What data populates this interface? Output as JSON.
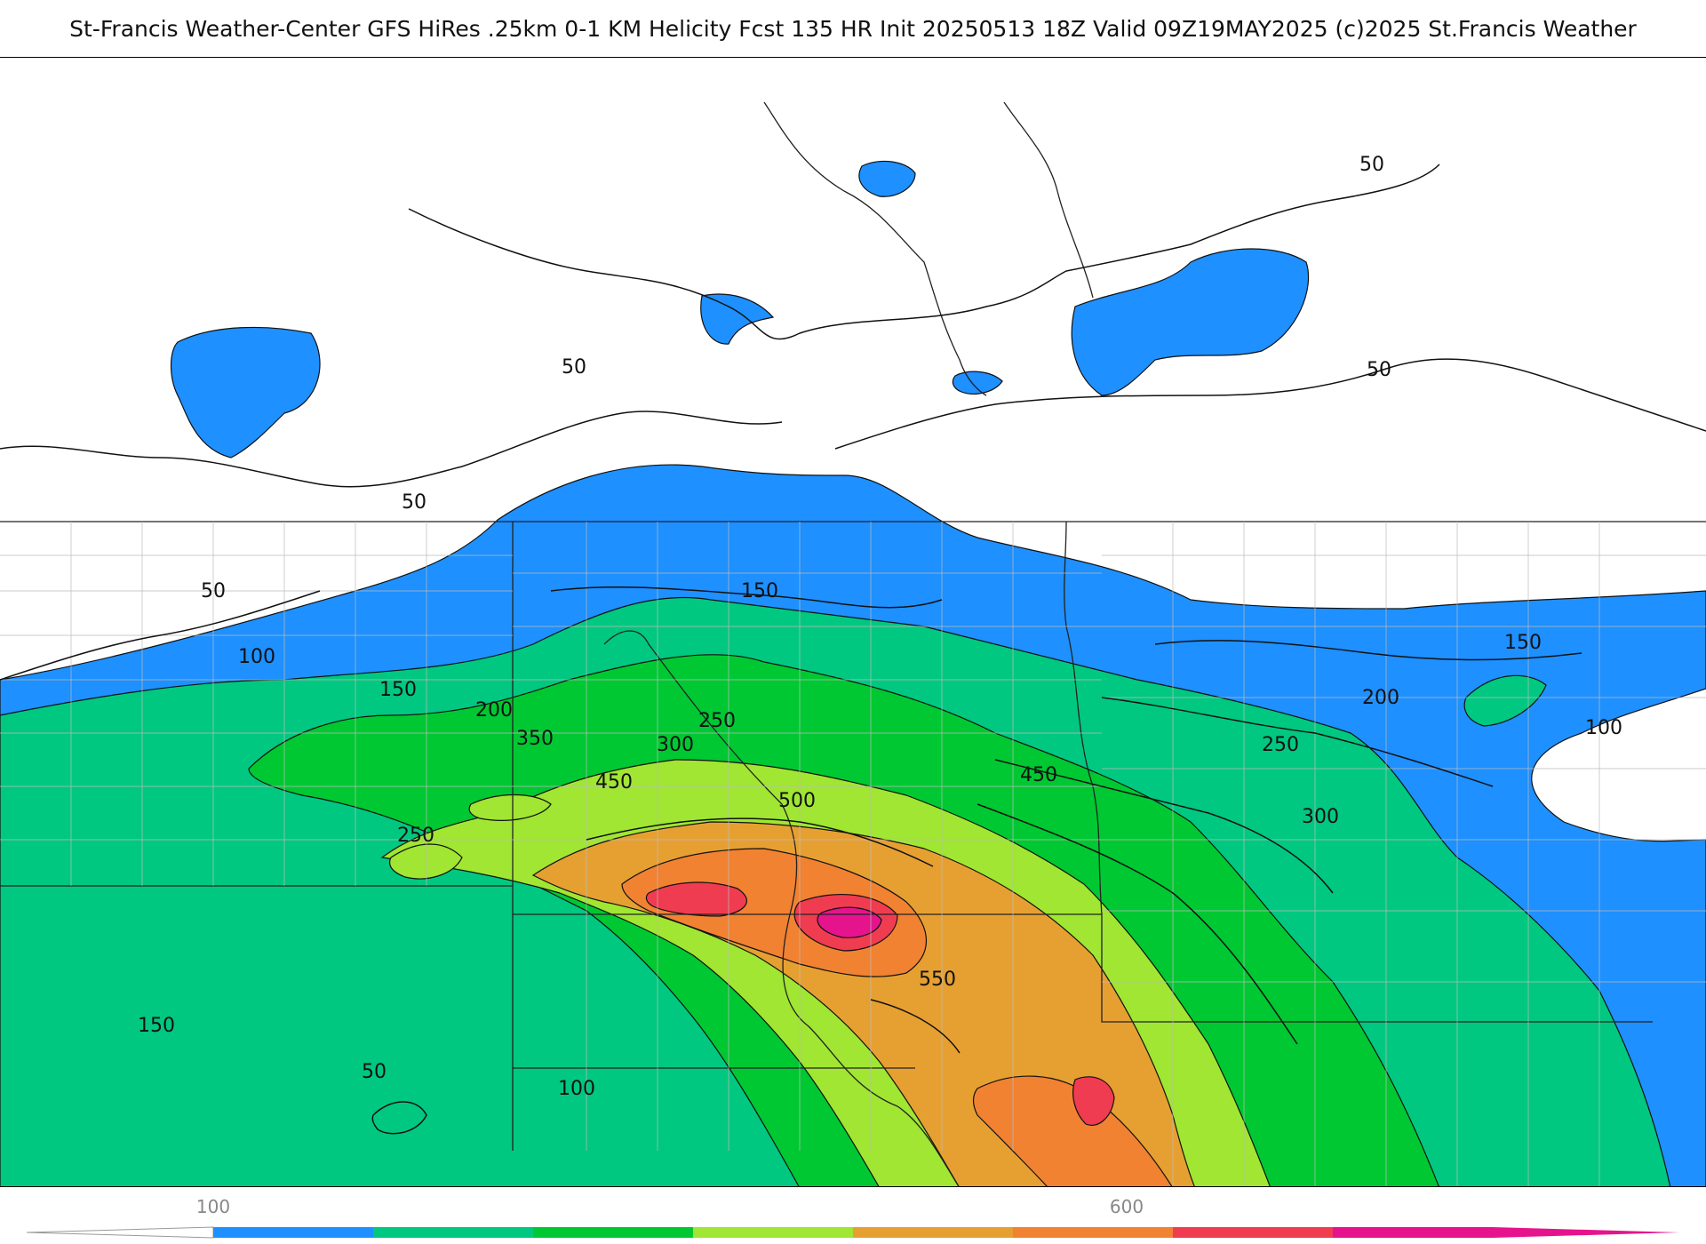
{
  "header": {
    "title": "St-Francis Weather-Center GFS HiRes .25km 0-1 KM Helicity Fcst 135 HR Init 20250513 18Z  Valid 09Z19MAY2025    (c)2025 St.Francis Weather"
  },
  "colors": {
    "c100": "#1e90ff",
    "c150": "#00c880",
    "c250": "#00c832",
    "c350": "#a0e632",
    "c450": "#e6a032",
    "c500": "#f08232",
    "c550": "#f03c50",
    "c600": "#e6148c"
  },
  "contour_labels": [
    {
      "id": "l1",
      "text": "50"
    },
    {
      "id": "l2",
      "text": "50"
    },
    {
      "id": "l3",
      "text": "50"
    },
    {
      "id": "l4",
      "text": "50"
    },
    {
      "id": "l5",
      "text": "50"
    },
    {
      "id": "l6",
      "text": "50"
    },
    {
      "id": "l7",
      "text": "100"
    },
    {
      "id": "l8",
      "text": "100"
    },
    {
      "id": "l9",
      "text": "100"
    },
    {
      "id": "l10",
      "text": "150"
    },
    {
      "id": "l11",
      "text": "150"
    },
    {
      "id": "l12",
      "text": "150"
    },
    {
      "id": "l13",
      "text": "150"
    },
    {
      "id": "l14",
      "text": "200"
    },
    {
      "id": "l15",
      "text": "200"
    },
    {
      "id": "l16",
      "text": "250"
    },
    {
      "id": "l17",
      "text": "250"
    },
    {
      "id": "l18",
      "text": "250"
    },
    {
      "id": "l19",
      "text": "300"
    },
    {
      "id": "l20",
      "text": "300"
    },
    {
      "id": "l21",
      "text": "350"
    },
    {
      "id": "l22",
      "text": "450"
    },
    {
      "id": "l23",
      "text": "450"
    },
    {
      "id": "l24",
      "text": "500"
    },
    {
      "id": "l25",
      "text": "550"
    }
  ],
  "colorbar": {
    "tick_labels": [
      "100",
      "600"
    ],
    "colors": [
      "#1e90ff",
      "#00c880",
      "#00c832",
      "#a0e632",
      "#e6a032",
      "#f08232",
      "#f03c50",
      "#e6148c"
    ]
  }
}
